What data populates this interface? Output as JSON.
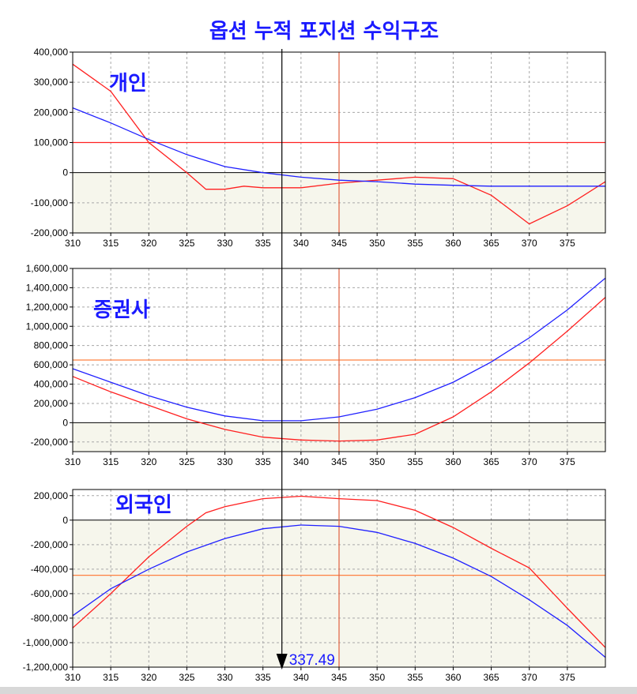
{
  "title": "옵션 누적 포지션 수익구조",
  "marker": {
    "value": 337.49,
    "label": "337.49"
  },
  "colors": {
    "red": "#ff2020",
    "blue": "#2020ff",
    "hline_top": "#ff2020",
    "hline_mid": "#ff8040",
    "hline_bot": "#ff8040",
    "vline": "#e06040",
    "grid": "#a8a8a8",
    "plot_bg": "#ffffff",
    "below_zero_bg": "#f6f6ec",
    "label": "#1a1aff"
  },
  "chart_data": [
    {
      "type": "line",
      "panel": "individual",
      "label": "개인",
      "xlim": [
        310,
        380
      ],
      "ylim": [
        -200000,
        400000
      ],
      "x_ticks": [
        310,
        315,
        320,
        325,
        330,
        335,
        340,
        345,
        350,
        355,
        360,
        365,
        370,
        375
      ],
      "x_tick_labels": [
        "310",
        "315",
        "320",
        "325",
        "330",
        "335",
        "340",
        "345",
        "350",
        "355",
        "360",
        "365",
        "370",
        "375"
      ],
      "y_ticks": [
        400000,
        300000,
        200000,
        100000,
        0,
        -100000,
        -200000
      ],
      "y_tick_labels": [
        "400,000",
        "300,000",
        "200,000",
        "100,000",
        "0",
        "-100,000",
        "-200,000"
      ],
      "hline": 100000,
      "vline": 345,
      "series": [
        {
          "name": "red",
          "color": "red",
          "x": [
            310,
            315,
            320,
            325,
            327.5,
            330,
            332.5,
            335,
            340,
            345,
            350,
            355,
            360,
            365,
            370,
            375,
            380
          ],
          "y": [
            360000,
            270000,
            100000,
            0,
            -55000,
            -55000,
            -45000,
            -50000,
            -50000,
            -35000,
            -25000,
            -15000,
            -20000,
            -75000,
            -170000,
            -110000,
            -30000
          ]
        },
        {
          "name": "blue",
          "color": "blue",
          "x": [
            310,
            315,
            320,
            325,
            330,
            335,
            340,
            345,
            350,
            355,
            360,
            365,
            370,
            375,
            380
          ],
          "y": [
            215000,
            165000,
            110000,
            60000,
            20000,
            0,
            -15000,
            -25000,
            -30000,
            -38000,
            -42000,
            -45000,
            -45000,
            -45000,
            -45000
          ]
        }
      ]
    },
    {
      "type": "line",
      "panel": "securities",
      "label": "증권사",
      "xlim": [
        310,
        380
      ],
      "ylim": [
        -300000,
        1600000
      ],
      "x_ticks": [
        310,
        315,
        320,
        325,
        330,
        335,
        340,
        345,
        350,
        355,
        360,
        365,
        370,
        375
      ],
      "x_tick_labels": [
        "310",
        "315",
        "320",
        "325",
        "330",
        "335",
        "340",
        "345",
        "350",
        "355",
        "360",
        "365",
        "370",
        "375"
      ],
      "y_ticks": [
        1600000,
        1400000,
        1200000,
        1000000,
        800000,
        600000,
        400000,
        200000,
        0,
        -200000
      ],
      "y_tick_labels": [
        "1,600,000",
        "1,400,000",
        "1,200,000",
        "1,000,000",
        "800,000",
        "600,000",
        "400,000",
        "200,000",
        "0",
        "-200,000"
      ],
      "hline": 650000,
      "vline": 345,
      "series": [
        {
          "name": "red",
          "color": "red",
          "x": [
            310,
            315,
            320,
            325,
            330,
            335,
            340,
            345,
            350,
            355,
            360,
            365,
            370,
            375,
            380
          ],
          "y": [
            480000,
            320000,
            180000,
            40000,
            -70000,
            -150000,
            -180000,
            -190000,
            -180000,
            -120000,
            60000,
            320000,
            620000,
            950000,
            1300000
          ]
        },
        {
          "name": "blue",
          "color": "blue",
          "x": [
            310,
            315,
            320,
            325,
            330,
            335,
            340,
            345,
            350,
            355,
            360,
            365,
            370,
            375,
            380
          ],
          "y": [
            560000,
            420000,
            280000,
            160000,
            70000,
            20000,
            20000,
            60000,
            140000,
            260000,
            420000,
            630000,
            880000,
            1170000,
            1500000
          ]
        }
      ]
    },
    {
      "type": "line",
      "panel": "foreign",
      "label": "외국인",
      "xlim": [
        310,
        380
      ],
      "ylim": [
        -1200000,
        250000
      ],
      "x_ticks": [
        310,
        315,
        320,
        325,
        330,
        335,
        340,
        345,
        350,
        355,
        360,
        365,
        370,
        375
      ],
      "x_tick_labels": [
        "310",
        "315",
        "320",
        "325",
        "330",
        "335",
        "340",
        "345",
        "350",
        "355",
        "360",
        "365",
        "370",
        "375"
      ],
      "y_ticks": [
        200000,
        0,
        -200000,
        -400000,
        -600000,
        -800000,
        -1000000,
        -1200000
      ],
      "y_tick_labels": [
        "200,000",
        "0",
        "-200,000",
        "-400,000",
        "-600,000",
        "-800,000",
        "-1,000,000",
        "-1,200,000"
      ],
      "hline": -450000,
      "vline": 345,
      "series": [
        {
          "name": "red",
          "color": "red",
          "x": [
            310,
            315,
            320,
            325,
            327.5,
            330,
            335,
            340,
            345,
            350,
            355,
            360,
            365,
            370,
            375,
            380
          ],
          "y": [
            -880000,
            -600000,
            -300000,
            -50000,
            60000,
            110000,
            175000,
            195000,
            175000,
            160000,
            80000,
            -60000,
            -230000,
            -390000,
            -720000,
            -1040000
          ]
        },
        {
          "name": "blue",
          "color": "blue",
          "x": [
            310,
            315,
            320,
            325,
            330,
            335,
            340,
            345,
            350,
            355,
            360,
            365,
            370,
            375,
            380
          ],
          "y": [
            -780000,
            -560000,
            -400000,
            -260000,
            -150000,
            -70000,
            -40000,
            -50000,
            -100000,
            -190000,
            -310000,
            -460000,
            -650000,
            -860000,
            -1120000
          ]
        }
      ]
    }
  ]
}
